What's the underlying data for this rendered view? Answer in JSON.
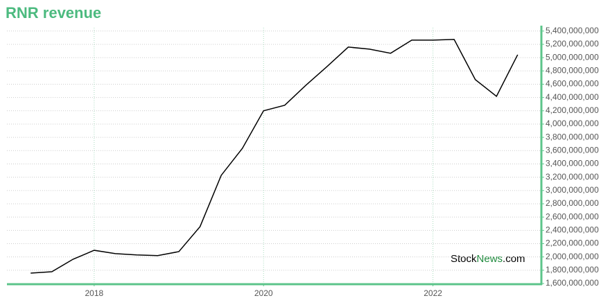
{
  "chart_data": {
    "type": "line",
    "title": "RNR revenue",
    "watermark": {
      "brand": "Stock",
      "accent": "News",
      "suffix": ".com"
    },
    "x": [
      2017.25,
      2017.5,
      2017.75,
      2018.0,
      2018.25,
      2018.5,
      2018.75,
      2019.0,
      2019.25,
      2019.5,
      2019.75,
      2020.0,
      2020.25,
      2020.5,
      2020.75,
      2021.0,
      2021.25,
      2021.5,
      2021.75,
      2022.0,
      2022.25,
      2022.5,
      2022.75,
      2023.0
    ],
    "series": [
      {
        "name": "RNR revenue",
        "color": "#000000",
        "values": [
          1757000000,
          1777000000,
          1965000000,
          2100000000,
          2050000000,
          2030000000,
          2020000000,
          2080000000,
          2456000000,
          3228000000,
          3635000000,
          4200000000,
          4283000000,
          4585000000,
          4867000000,
          5159000000,
          5128000000,
          5066000000,
          5264000000,
          5264000000,
          5274000000,
          4669000000,
          4418000000,
          5044000000
        ]
      }
    ],
    "xlim": [
      2016.97,
      2023.28
    ],
    "xticks": [
      2018,
      2020,
      2022
    ],
    "ylim": [
      1600000000,
      5450000000
    ],
    "yticks": [
      {
        "value": 1600000000,
        "label": "1,600,000,000"
      },
      {
        "value": 1800000000,
        "label": "1,800,000,000"
      },
      {
        "value": 2000000000,
        "label": "2,000,000,000"
      },
      {
        "value": 2200000000,
        "label": "2,200,000,000"
      },
      {
        "value": 2400000000,
        "label": "2,400,000,000"
      },
      {
        "value": 2600000000,
        "label": "2,600,000,000"
      },
      {
        "value": 2800000000,
        "label": "2,800,000,000"
      },
      {
        "value": 3000000000,
        "label": "3,000,000,000"
      },
      {
        "value": 3200000000,
        "label": "3,200,000,000"
      },
      {
        "value": 3400000000,
        "label": "3,400,000,000"
      },
      {
        "value": 3600000000,
        "label": "3,600,000,000"
      },
      {
        "value": 3800000000,
        "label": "3,800,000,000"
      },
      {
        "value": 4000000000,
        "label": "4,000,000,000"
      },
      {
        "value": 4200000000,
        "label": "4,200,000,000"
      },
      {
        "value": 4400000000,
        "label": "4,400,000,000"
      },
      {
        "value": 4600000000,
        "label": "4,600,000,000"
      },
      {
        "value": 4800000000,
        "label": "4,800,000,000"
      },
      {
        "value": 5000000000,
        "label": "5,000,000,000"
      },
      {
        "value": 5200000000,
        "label": "5,200,000,000"
      },
      {
        "value": 5400000000,
        "label": "5,400,000,000"
      }
    ],
    "grid": true,
    "axis_color": "#5cc48a"
  }
}
